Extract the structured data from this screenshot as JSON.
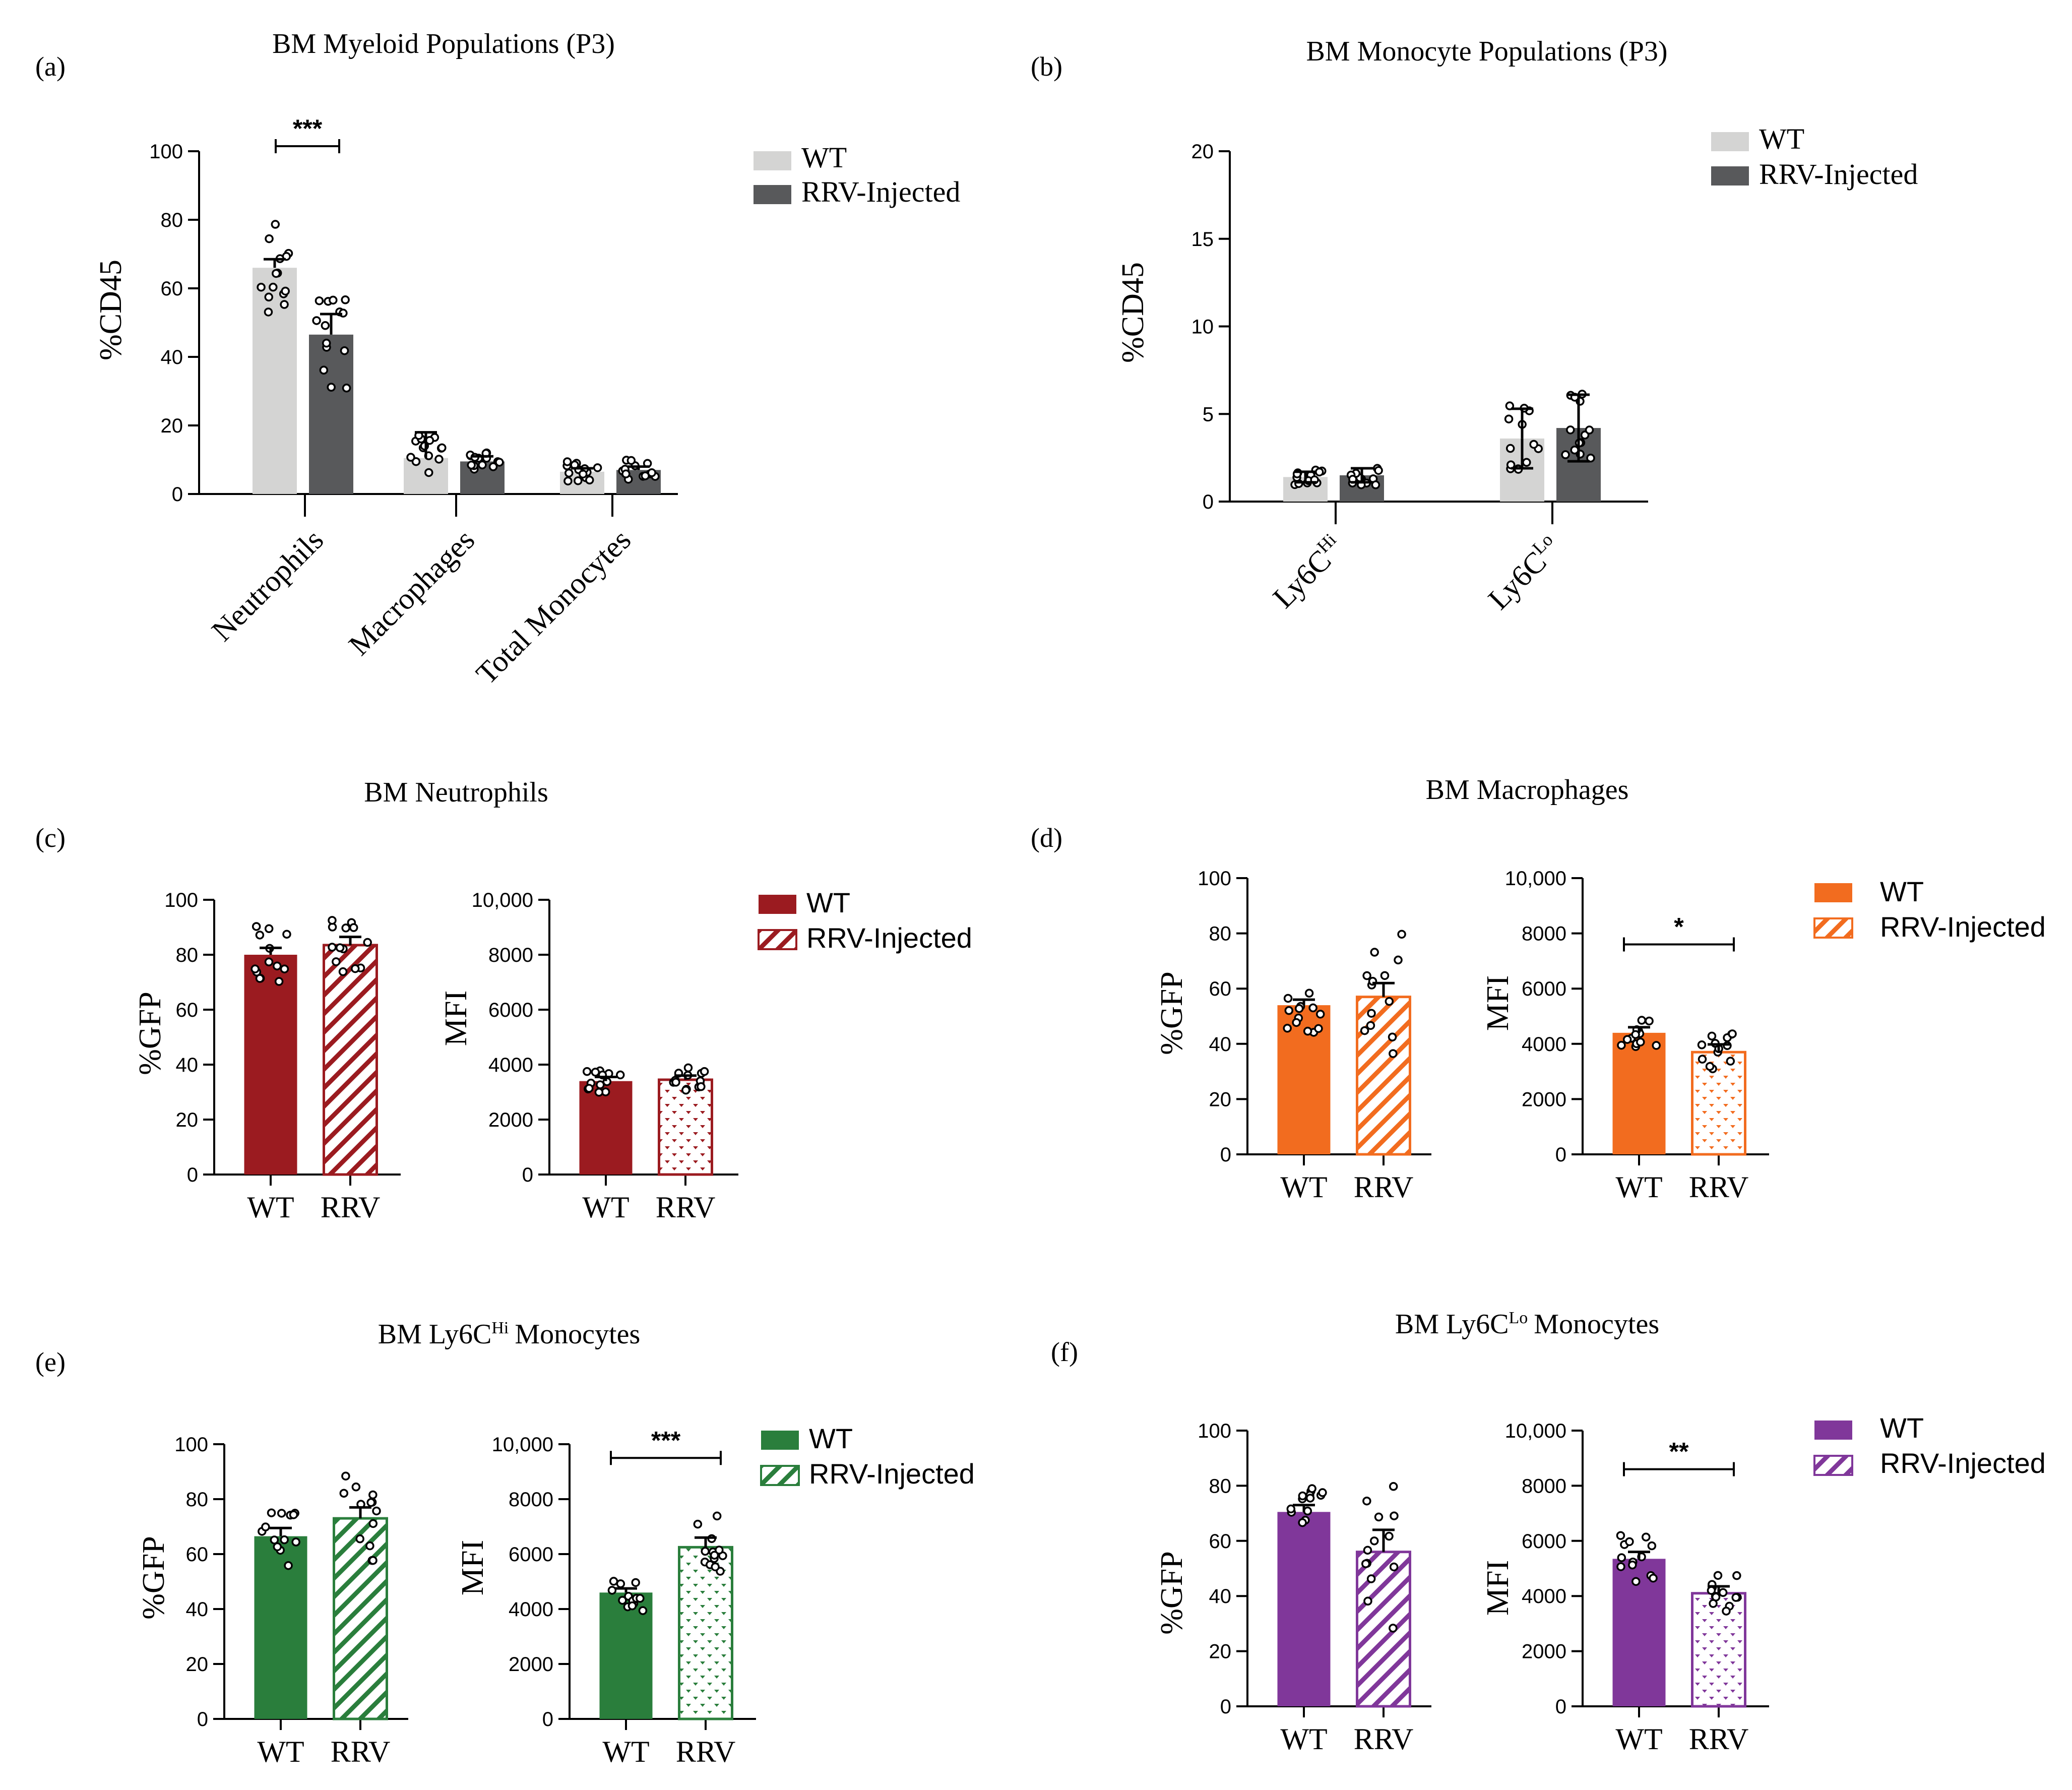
{
  "colors": {
    "wt_grey": "#d4d4d3",
    "rrv_grey": "#58595b",
    "neutrophil": "#9b1b20",
    "macrophage": "#f26c1f",
    "ly6c_hi": "#2a7e3c",
    "ly6c_lo": "#80379a"
  },
  "chart_data": [
    {
      "id": "a",
      "type": "bar",
      "panel_label": "(a)",
      "title": "BM Myeloid Populations (P3)",
      "ylabel": "%CD45",
      "ylim": [
        0,
        100
      ],
      "yticks": [
        "0",
        "20",
        "40",
        "60",
        "80",
        "100"
      ],
      "categories": [
        "Neutrophils",
        "Macrophages",
        "Total Monocytes"
      ],
      "series": [
        {
          "name": "WT",
          "values": [
            66,
            10.5,
            6.5
          ],
          "errors": [
            2.5,
            7.5,
            1.0
          ]
        },
        {
          "name": "RRV-Injected",
          "values": [
            46.5,
            9.5,
            7
          ],
          "errors": [
            6,
            1.5,
            1.0
          ]
        }
      ],
      "legend": [
        "WT",
        "RRV-Injected"
      ],
      "annotations": [
        {
          "text": "***",
          "category": "Neutrophils"
        }
      ]
    },
    {
      "id": "b",
      "type": "bar",
      "panel_label": "(b)",
      "title": "BM Monocyte Populations (P3)",
      "ylabel": "%CD45",
      "ylim": [
        0,
        20
      ],
      "yticks": [
        "0",
        "5",
        "10",
        "15",
        "20"
      ],
      "categories": [
        "Ly6C",
        "Ly6C"
      ],
      "category_superscripts": [
        "Hi",
        "Lo"
      ],
      "series": [
        {
          "name": "WT",
          "values": [
            1.4,
            3.6
          ],
          "errors": [
            0.3,
            1.7
          ]
        },
        {
          "name": "RRV-Injected",
          "values": [
            1.5,
            4.2
          ],
          "errors": [
            0.4,
            1.9
          ]
        }
      ],
      "legend": [
        "WT",
        "RRV-Injected"
      ]
    },
    {
      "id": "c",
      "type": "bar",
      "panel_label": "(c)",
      "title": "BM Neutrophils",
      "legend": [
        "WT",
        "RRV-Injected"
      ],
      "subplots": [
        {
          "ylabel": "%GFP",
          "ylim": [
            0,
            100
          ],
          "yticks": [
            "0",
            "20",
            "40",
            "60",
            "80",
            "100"
          ],
          "categories": [
            "WT",
            "RRV"
          ],
          "values": [
            80,
            83.5
          ],
          "errors": [
            2.5,
            3
          ]
        },
        {
          "ylabel": "MFI",
          "ylim": [
            0,
            10000
          ],
          "yticks": [
            "0",
            "2000",
            "4000",
            "6000",
            "8000",
            "10,000"
          ],
          "categories": [
            "WT",
            "RRV"
          ],
          "values": [
            3400,
            3450
          ],
          "errors": [
            150,
            150
          ]
        }
      ]
    },
    {
      "id": "d",
      "type": "bar",
      "panel_label": "(d)",
      "title": "BM Macrophages",
      "legend": [
        "WT",
        "RRV-Injected"
      ],
      "subplots": [
        {
          "ylabel": "%GFP",
          "ylim": [
            0,
            100
          ],
          "yticks": [
            "0",
            "20",
            "40",
            "60",
            "80",
            "100"
          ],
          "categories": [
            "WT",
            "RRV"
          ],
          "values": [
            54,
            57
          ],
          "errors": [
            2,
            5
          ]
        },
        {
          "ylabel": "MFI",
          "ylim": [
            0,
            10000
          ],
          "yticks": [
            "0",
            "2000",
            "4000",
            "6000",
            "8000",
            "10,000"
          ],
          "categories": [
            "WT",
            "RRV"
          ],
          "values": [
            4400,
            3700
          ],
          "errors": [
            200,
            280
          ],
          "annotation": "*"
        }
      ]
    },
    {
      "id": "e",
      "type": "bar",
      "panel_label": "(e)",
      "title": "BM Ly6C",
      "title_superscript": "Hi",
      "title_suffix": "Monocytes",
      "legend": [
        "WT",
        "RRV-Injected"
      ],
      "subplots": [
        {
          "ylabel": "%GFP",
          "ylim": [
            0,
            100
          ],
          "yticks": [
            "0",
            "20",
            "40",
            "60",
            "80",
            "100"
          ],
          "categories": [
            "WT",
            "RRV"
          ],
          "values": [
            66.5,
            73
          ],
          "errors": [
            3,
            4
          ]
        },
        {
          "ylabel": "MFI",
          "ylim": [
            0,
            10000
          ],
          "yticks": [
            "0",
            "2000",
            "4000",
            "6000",
            "8000",
            "10,000"
          ],
          "categories": [
            "WT",
            "RRV"
          ],
          "values": [
            4600,
            6250
          ],
          "errors": [
            150,
            350
          ],
          "annotation": "***"
        }
      ]
    },
    {
      "id": "f",
      "type": "bar",
      "panel_label": "(f)",
      "title": "BM Ly6C",
      "title_superscript": "Lo",
      "title_suffix": "Monocytes",
      "legend": [
        "WT",
        "RRV-Injected"
      ],
      "subplots": [
        {
          "ylabel": "%GFP",
          "ylim": [
            0,
            100
          ],
          "yticks": [
            "0",
            "20",
            "40",
            "60",
            "80",
            "100"
          ],
          "categories": [
            "WT",
            "RRV"
          ],
          "values": [
            70.5,
            56
          ],
          "errors": [
            2.5,
            8
          ]
        },
        {
          "ylabel": "MFI",
          "ylim": [
            0,
            10000
          ],
          "yticks": [
            "0",
            "2000",
            "4000",
            "6000",
            "8000",
            "10,000"
          ],
          "categories": [
            "WT",
            "RRV"
          ],
          "values": [
            5350,
            4100
          ],
          "errors": [
            250,
            250
          ],
          "annotation": "**"
        }
      ]
    }
  ]
}
